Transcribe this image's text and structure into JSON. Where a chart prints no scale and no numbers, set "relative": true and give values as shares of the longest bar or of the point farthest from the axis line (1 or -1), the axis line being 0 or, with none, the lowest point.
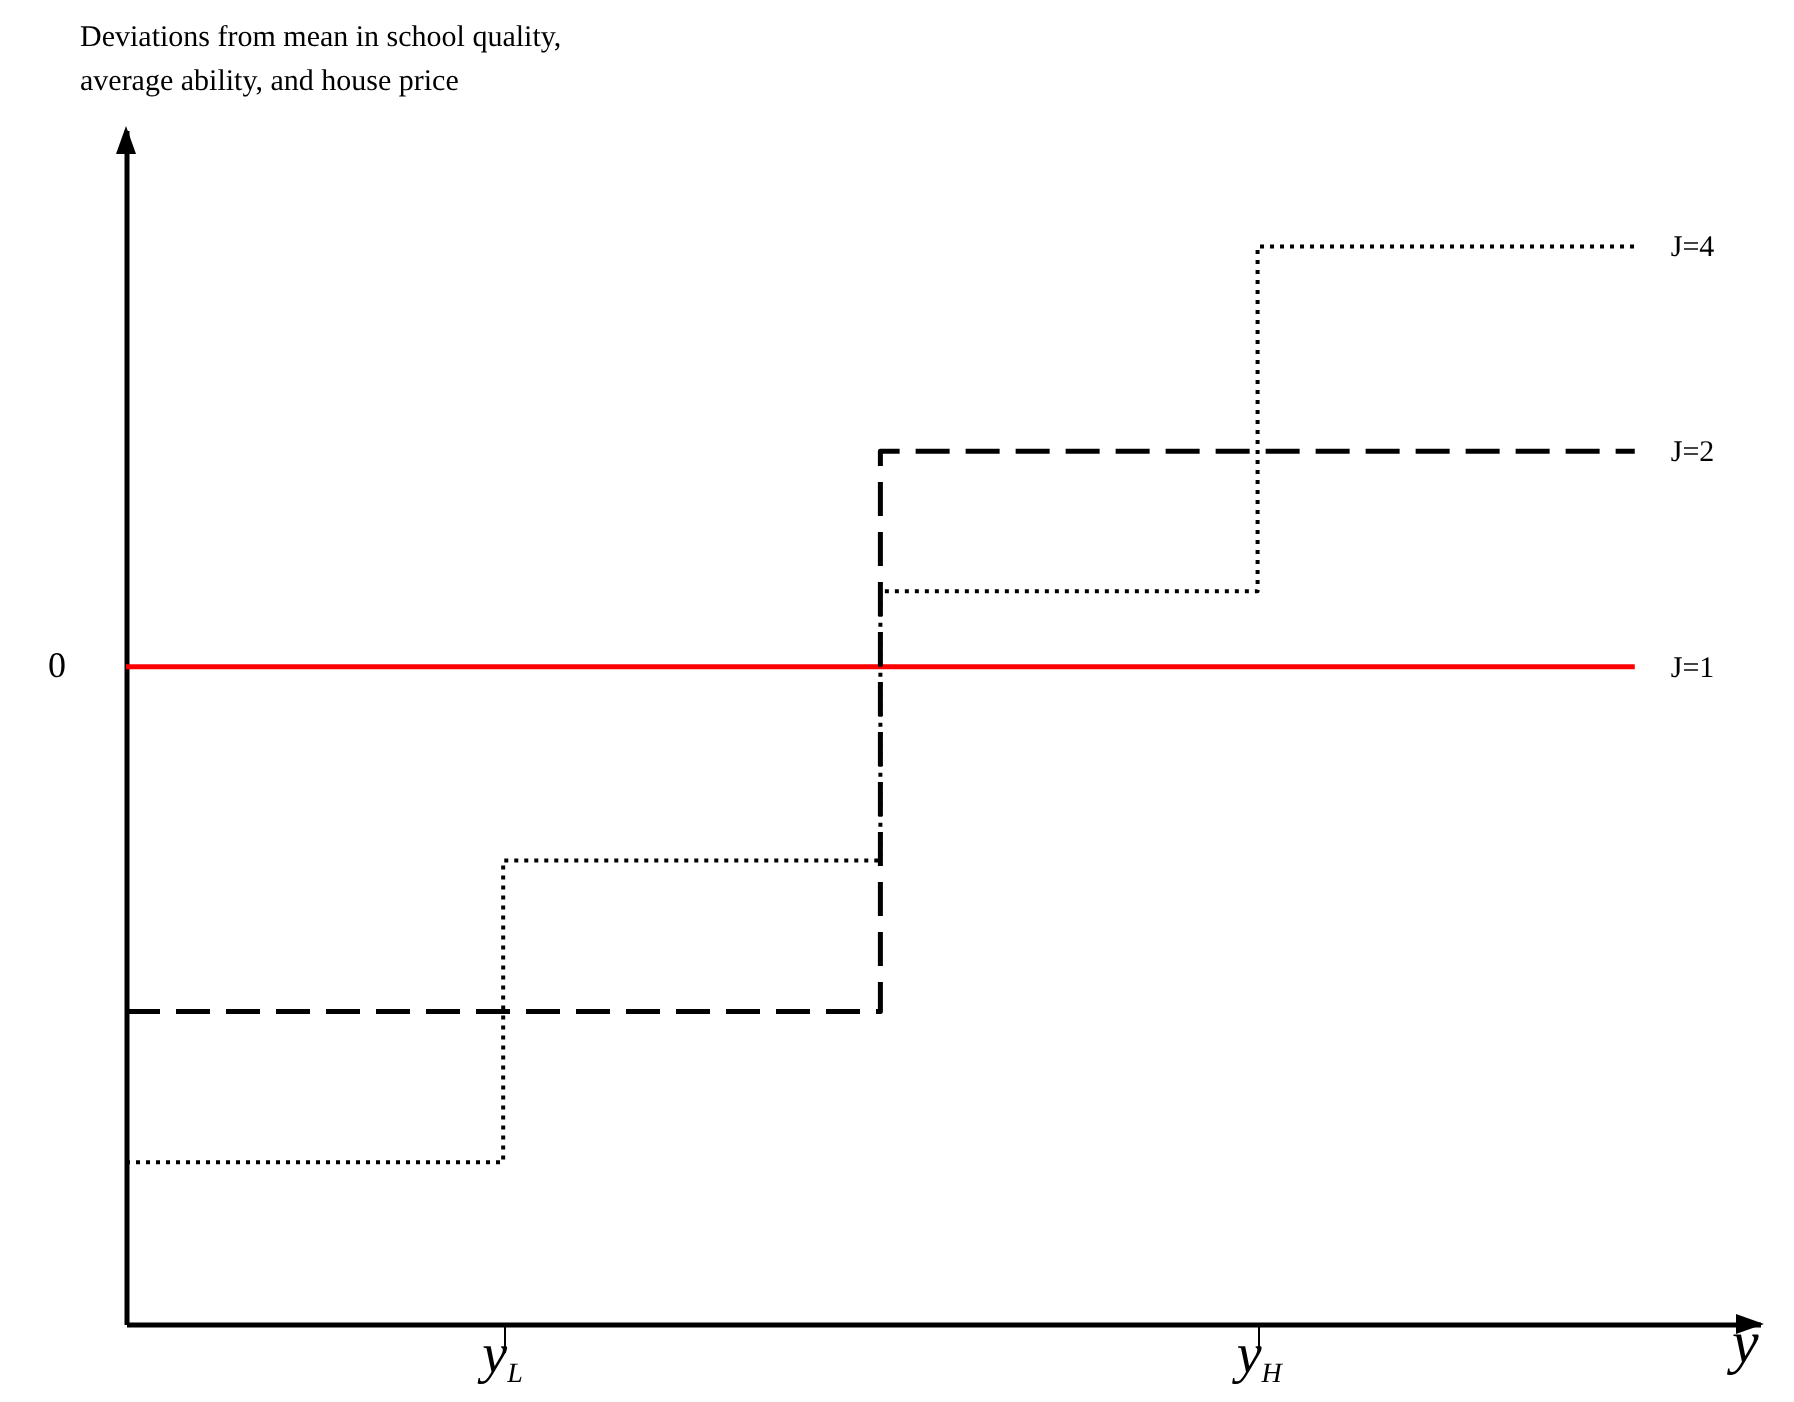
{
  "chart_data": {
    "type": "step",
    "ylabel": "Deviations from mean in school quality, average ability, and house price",
    "xlabel": "y",
    "relative": true,
    "marker": "none",
    "categories": [
      null,
      "y$_{L}$",
      null,
      "y$_{H}$",
      null
    ],
    "annotations": [
      "0"
    ],
    "series": [
      {
        "name": "J=1",
        "color": "#ff0000",
        "line_style": "solid",
        "values": [
          0.61,
          0.61,
          0.61,
          0.61,
          0.61
        ]
      },
      {
        "name": "J=2",
        "color": "#000000",
        "line_style": "dashed",
        "values": [
          0.29,
          0.29,
          0.81,
          0.81,
          0.81
        ]
      },
      {
        "name": "J=4",
        "color": "#000000",
        "line_style": "dotted",
        "values": [
          0.15,
          0.43,
          0.68,
          1,
          1
        ]
      }
    ]
  }
}
